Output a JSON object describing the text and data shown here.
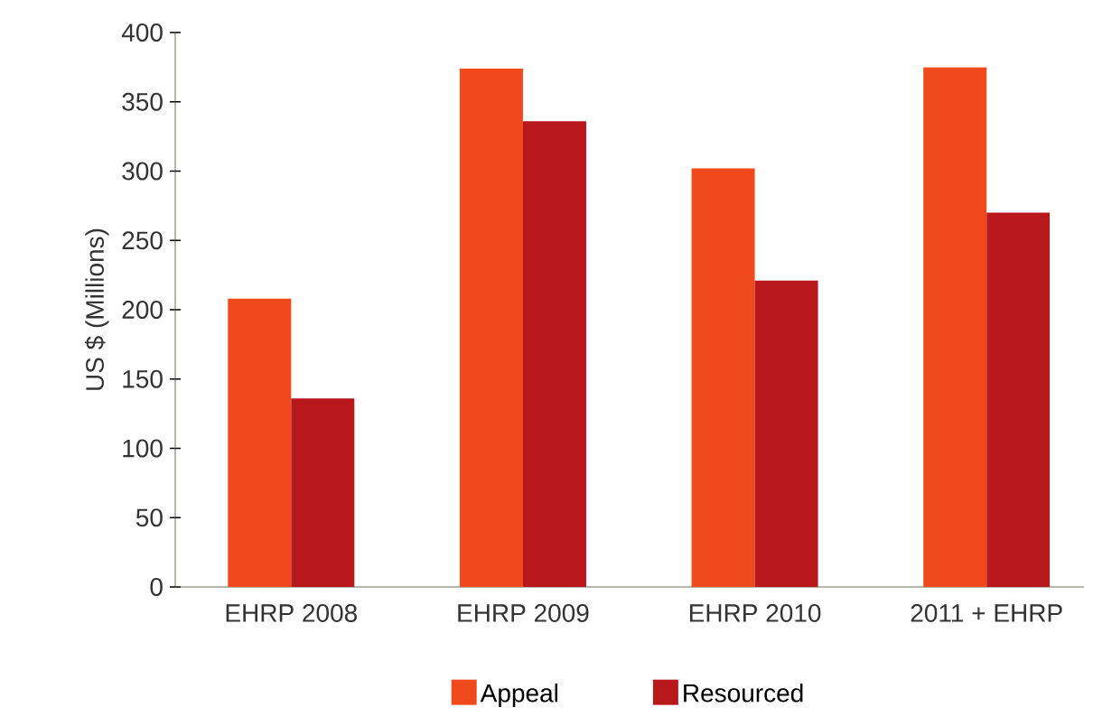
{
  "chart_data": {
    "type": "bar",
    "ylabel": "US $ (Millions)",
    "categories": [
      "EHRP 2008",
      "EHRP 2009",
      "EHRP 2010",
      "2011 + EHRP"
    ],
    "series": [
      {
        "name": "Appeal",
        "color": "#f04a1c",
        "values": [
          208,
          374,
          302,
          375
        ]
      },
      {
        "name": "Resourced",
        "color": "#b8171c",
        "values": [
          136,
          336,
          221,
          270
        ]
      }
    ],
    "ylim": [
      0,
      400
    ],
    "yticks": [
      0,
      50,
      100,
      150,
      200,
      250,
      300,
      350,
      400
    ],
    "legend": "bottom"
  }
}
